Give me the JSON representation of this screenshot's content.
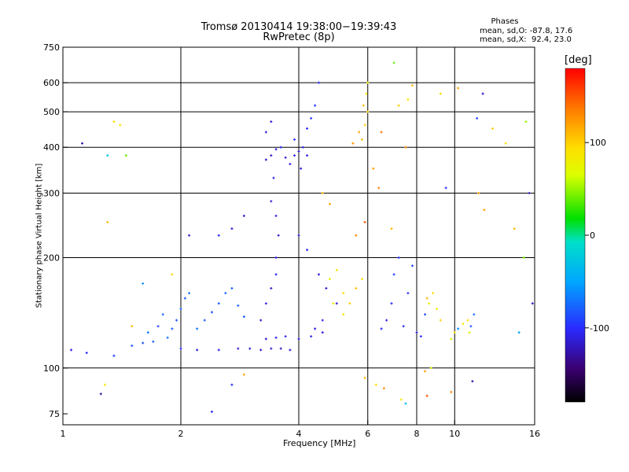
{
  "header": {
    "title_line1": "Tromsø 20130414 19:38:00−19:39:43",
    "title_line2": "RwPretec (8p)",
    "legend_title": "Phases",
    "legend_line1": "mean, sd,O: -87.8, 17.6",
    "legend_line2": "mean, sd,X:  92.4, 23.0"
  },
  "colorbar": {
    "unit_label": "[deg]",
    "ticks": [
      {
        "value": 100,
        "label": "100"
      },
      {
        "value": 0,
        "label": "0"
      },
      {
        "value": -100,
        "label": "-100"
      }
    ],
    "range": [
      -180,
      180
    ]
  },
  "chart_data": {
    "type": "scatter",
    "title": "Tromsø 20130414 19:38:00−19:39:43",
    "subtitle": "RwPretec (8p)",
    "xlabel": "Frequency [MHz]",
    "ylabel": "Stationary phase Virtual Height [km]",
    "xscale": "log",
    "yscale": "log",
    "xlim": [
      1,
      16
    ],
    "ylim": [
      70,
      750
    ],
    "xticks": [
      {
        "value": 1,
        "label": "1"
      },
      {
        "value": 2,
        "label": "2"
      },
      {
        "value": 4,
        "label": "4"
      },
      {
        "value": 6,
        "label": "6"
      },
      {
        "value": 8,
        "label": "8"
      },
      {
        "value": 10,
        "label": "10"
      },
      {
        "value": 16,
        "label": "16"
      }
    ],
    "yticks": [
      {
        "value": 75,
        "label": "75"
      },
      {
        "value": 100,
        "label": "100"
      },
      {
        "value": 200,
        "label": "200"
      },
      {
        "value": 300,
        "label": "300"
      },
      {
        "value": 400,
        "label": "400"
      },
      {
        "value": 500,
        "label": "500"
      },
      {
        "value": 600,
        "label": "600"
      },
      {
        "value": 750,
        "label": "750"
      }
    ],
    "grid": true,
    "vertical_gridlines": [
      2,
      4,
      6,
      8,
      10
    ],
    "horizontal_gridlines": [
      100,
      200,
      300,
      400,
      500,
      600
    ],
    "color_variable": "phase [deg]",
    "points": [
      [
        1.05,
        112,
        -110
      ],
      [
        1.15,
        110,
        -100
      ],
      [
        1.35,
        108,
        -90
      ],
      [
        1.5,
        115,
        -80
      ],
      [
        1.6,
        117,
        -85
      ],
      [
        1.65,
        125,
        -70
      ],
      [
        1.7,
        118,
        -80
      ],
      [
        1.75,
        130,
        -90
      ],
      [
        1.8,
        140,
        -75
      ],
      [
        1.85,
        121,
        -70
      ],
      [
        1.9,
        128,
        -80
      ],
      [
        1.95,
        135,
        -85
      ],
      [
        2.0,
        145,
        -75
      ],
      [
        2.05,
        155,
        -80
      ],
      [
        2.1,
        160,
        -70
      ],
      [
        2.2,
        128,
        -70
      ],
      [
        2.3,
        135,
        -80
      ],
      [
        2.4,
        142,
        -85
      ],
      [
        2.5,
        150,
        -80
      ],
      [
        2.6,
        160,
        -75
      ],
      [
        2.7,
        165,
        -80
      ],
      [
        2.8,
        148,
        -75
      ],
      [
        2.9,
        138,
        -80
      ],
      [
        2.0,
        113,
        -100
      ],
      [
        2.2,
        112,
        -110
      ],
      [
        2.5,
        112,
        -105
      ],
      [
        2.8,
        113,
        -110
      ],
      [
        3.0,
        113,
        -110
      ],
      [
        3.2,
        112,
        -115
      ],
      [
        3.4,
        113,
        -110
      ],
      [
        3.6,
        113,
        -115
      ],
      [
        3.8,
        112,
        -110
      ],
      [
        3.3,
        120,
        -115
      ],
      [
        3.5,
        121,
        -110
      ],
      [
        3.7,
        122,
        -105
      ],
      [
        4.0,
        120,
        -110
      ],
      [
        4.3,
        122,
        -105
      ],
      [
        4.6,
        125,
        -110
      ],
      [
        3.2,
        135,
        -115
      ],
      [
        3.3,
        150,
        -110
      ],
      [
        3.4,
        165,
        -115
      ],
      [
        3.5,
        180,
        -105
      ],
      [
        3.5,
        200,
        -110
      ],
      [
        3.55,
        230,
        -115
      ],
      [
        3.5,
        260,
        -110
      ],
      [
        3.4,
        285,
        -115
      ],
      [
        3.45,
        330,
        -110
      ],
      [
        3.3,
        370,
        -120
      ],
      [
        3.4,
        380,
        -115
      ],
      [
        3.5,
        395,
        -110
      ],
      [
        3.6,
        400,
        -105
      ],
      [
        3.7,
        375,
        -115
      ],
      [
        3.8,
        360,
        -110
      ],
      [
        3.9,
        380,
        -110
      ],
      [
        4.0,
        390,
        -115
      ],
      [
        4.1,
        400,
        -105
      ],
      [
        4.2,
        380,
        -110
      ],
      [
        4.05,
        350,
        -110
      ],
      [
        3.9,
        420,
        -100
      ],
      [
        4.2,
        450,
        -100
      ],
      [
        4.4,
        520,
        -95
      ],
      [
        4.5,
        600,
        -100
      ],
      [
        4.3,
        480,
        -95
      ],
      [
        3.4,
        470,
        -115
      ],
      [
        3.3,
        440,
        -110
      ],
      [
        4.0,
        230,
        -110
      ],
      [
        4.2,
        210,
        -105
      ],
      [
        4.5,
        180,
        -110
      ],
      [
        4.7,
        165,
        -115
      ],
      [
        5.0,
        150,
        -110
      ],
      [
        4.6,
        135,
        -105
      ],
      [
        4.4,
        128,
        -110
      ],
      [
        4.8,
        175,
        80
      ],
      [
        5.0,
        185,
        90
      ],
      [
        5.2,
        160,
        95
      ],
      [
        5.4,
        150,
        100
      ],
      [
        5.6,
        165,
        110
      ],
      [
        5.8,
        175,
        95
      ],
      [
        5.2,
        140,
        90
      ],
      [
        4.9,
        150,
        85
      ],
      [
        5.8,
        420,
        110
      ],
      [
        5.9,
        460,
        100
      ],
      [
        6.0,
        500,
        95
      ],
      [
        5.95,
        560,
        90
      ],
      [
        6.0,
        600,
        85
      ],
      [
        5.7,
        440,
        120
      ],
      [
        5.85,
        520,
        110
      ],
      [
        5.5,
        410,
        125
      ],
      [
        6.5,
        128,
        -100
      ],
      [
        6.7,
        135,
        -110
      ],
      [
        6.9,
        150,
        -100
      ],
      [
        7.0,
        180,
        -90
      ],
      [
        7.2,
        200,
        -95
      ],
      [
        7.4,
        130,
        -105
      ],
      [
        7.6,
        160,
        -95
      ],
      [
        7.8,
        190,
        -90
      ],
      [
        8.0,
        125,
        -110
      ],
      [
        8.2,
        122,
        -100
      ],
      [
        8.4,
        140,
        -90
      ],
      [
        8.6,
        150,
        80
      ],
      [
        8.8,
        160,
        95
      ],
      [
        9.0,
        145,
        85
      ],
      [
        9.2,
        135,
        100
      ],
      [
        8.5,
        155,
        110
      ],
      [
        10.2,
        128,
        -60
      ],
      [
        10.5,
        132,
        80
      ],
      [
        10.8,
        135,
        90
      ],
      [
        11.0,
        130,
        -80
      ],
      [
        11.2,
        140,
        -70
      ],
      [
        10.9,
        125,
        70
      ],
      [
        9.8,
        120,
        60
      ],
      [
        10.0,
        125,
        90
      ],
      [
        1.12,
        410,
        -130
      ],
      [
        1.3,
        380,
        -30
      ],
      [
        1.35,
        470,
        95
      ],
      [
        1.4,
        460,
        90
      ],
      [
        1.3,
        250,
        110
      ],
      [
        1.25,
        85,
        -130
      ],
      [
        1.28,
        90,
        85
      ],
      [
        2.7,
        90,
        -100
      ],
      [
        2.4,
        76,
        -100
      ],
      [
        2.9,
        96,
        120
      ],
      [
        5.9,
        94,
        110
      ],
      [
        6.3,
        90,
        95
      ],
      [
        6.6,
        88,
        130
      ],
      [
        7.3,
        82,
        80
      ],
      [
        7.5,
        80,
        -30
      ],
      [
        8.4,
        98,
        120
      ],
      [
        8.7,
        100,
        70
      ],
      [
        8.5,
        84,
        150
      ],
      [
        9.8,
        86,
        130
      ],
      [
        11.1,
        92,
        -130
      ],
      [
        7.0,
        680,
        40
      ],
      [
        7.2,
        520,
        100
      ],
      [
        7.8,
        590,
        110
      ],
      [
        7.6,
        540,
        90
      ],
      [
        9.2,
        560,
        95
      ],
      [
        10.2,
        580,
        120
      ],
      [
        11.4,
        480,
        -90
      ],
      [
        11.8,
        560,
        -120
      ],
      [
        12.5,
        450,
        100
      ],
      [
        13.5,
        410,
        95
      ],
      [
        15.2,
        470,
        50
      ],
      [
        15.5,
        300,
        -120
      ],
      [
        15.0,
        200,
        40
      ],
      [
        14.6,
        125,
        -50
      ],
      [
        15.8,
        150,
        -120
      ],
      [
        14.2,
        240,
        110
      ],
      [
        11.9,
        270,
        120
      ],
      [
        11.5,
        300,
        120
      ],
      [
        9.5,
        310,
        -100
      ],
      [
        7.5,
        400,
        130
      ],
      [
        6.5,
        440,
        140
      ],
      [
        6.2,
        350,
        120
      ],
      [
        6.4,
        310,
        130
      ],
      [
        6.9,
        240,
        110
      ],
      [
        5.9,
        250,
        150
      ],
      [
        5.6,
        230,
        130
      ],
      [
        4.8,
        280,
        120
      ],
      [
        4.6,
        300,
        110
      ],
      [
        2.9,
        260,
        -120
      ],
      [
        2.7,
        240,
        -110
      ],
      [
        2.5,
        230,
        -100
      ],
      [
        2.1,
        230,
        -110
      ],
      [
        1.6,
        170,
        -60
      ],
      [
        1.5,
        130,
        110
      ],
      [
        1.45,
        380,
        40
      ],
      [
        1.9,
        180,
        95
      ]
    ]
  }
}
